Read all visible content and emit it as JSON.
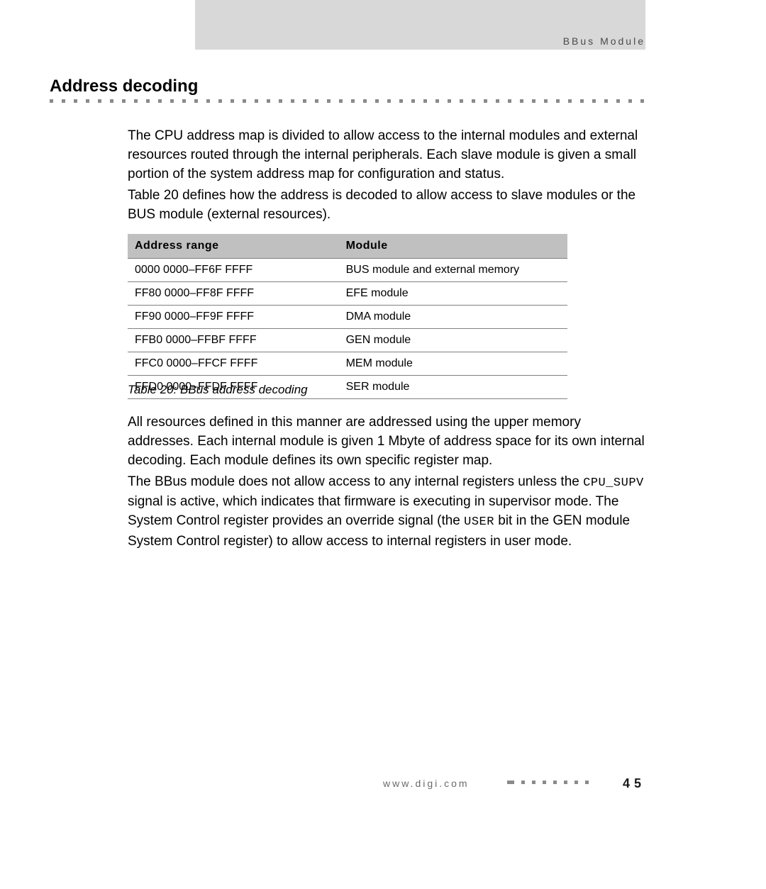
{
  "header": {
    "running_title": "BBus Module"
  },
  "section": {
    "title": "Address decoding"
  },
  "paragraphs": {
    "p1": "The CPU address map is divided to allow access to the internal modules and external resources routed through the internal peripherals. Each slave module is given a small portion of the system address map for configuration and status.",
    "p2": "Table 20 defines how the address is decoded to allow access to slave modules or the BUS module (external resources).",
    "p3": "All resources defined in this manner are addressed using the upper memory addresses. Each internal module is given 1 Mbyte of address space for its own internal decoding. Each module defines its own specific register map.",
    "p4_a": "The BBus module does not allow access to any internal registers unless the ",
    "p4_code1": "CPU_SUPV",
    "p4_b": " signal is active, which indicates that firmware is executing in supervisor mode. The System Control register provides an override signal (the ",
    "p4_code2": "USER",
    "p4_c": " bit in the GEN module System Control register) to allow access to internal registers in user mode."
  },
  "table": {
    "caption": "Table 20: BBus address decoding",
    "columns": [
      "Address range",
      "Module"
    ],
    "rows": [
      [
        "0000 0000–FF6F FFFF",
        "BUS module and external memory"
      ],
      [
        "FF80 0000–FF8F FFFF",
        "EFE module"
      ],
      [
        "FF90 0000–FF9F FFFF",
        "DMA module"
      ],
      [
        "FFB0 0000–FFBF FFFF",
        "GEN module"
      ],
      [
        "FFC0 0000–FFCF FFFF",
        "MEM module"
      ],
      [
        "FFD0 0000–FFDF FFFF",
        "SER module"
      ]
    ],
    "header_bg": "#c0c0c0",
    "row_border_color": "#808080",
    "col_widths": [
      "48%",
      "52%"
    ]
  },
  "footer": {
    "url": "www.digi.com",
    "page": "45"
  },
  "style": {
    "page_bg": "#ffffff",
    "topbar_bg": "#d8d8d8",
    "dot_color": "#8a8a8a",
    "body_font_size": 19,
    "table_font_size": 16
  }
}
